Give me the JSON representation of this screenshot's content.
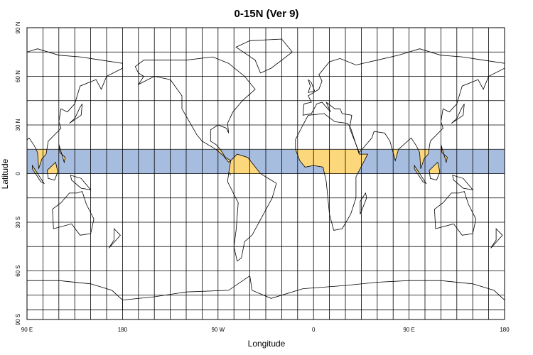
{
  "map": {
    "title": "0-15N (Ver 9)",
    "x_label": "Longitude",
    "y_label": "Latitude",
    "x_tick_labels": [
      "90 E",
      "180",
      "90 W",
      "0",
      "90 E",
      "180"
    ],
    "y_tick_labels": [
      "90 N",
      "60 N",
      "30 N",
      "0",
      "30 S",
      "60 S",
      "90 S"
    ]
  }
}
